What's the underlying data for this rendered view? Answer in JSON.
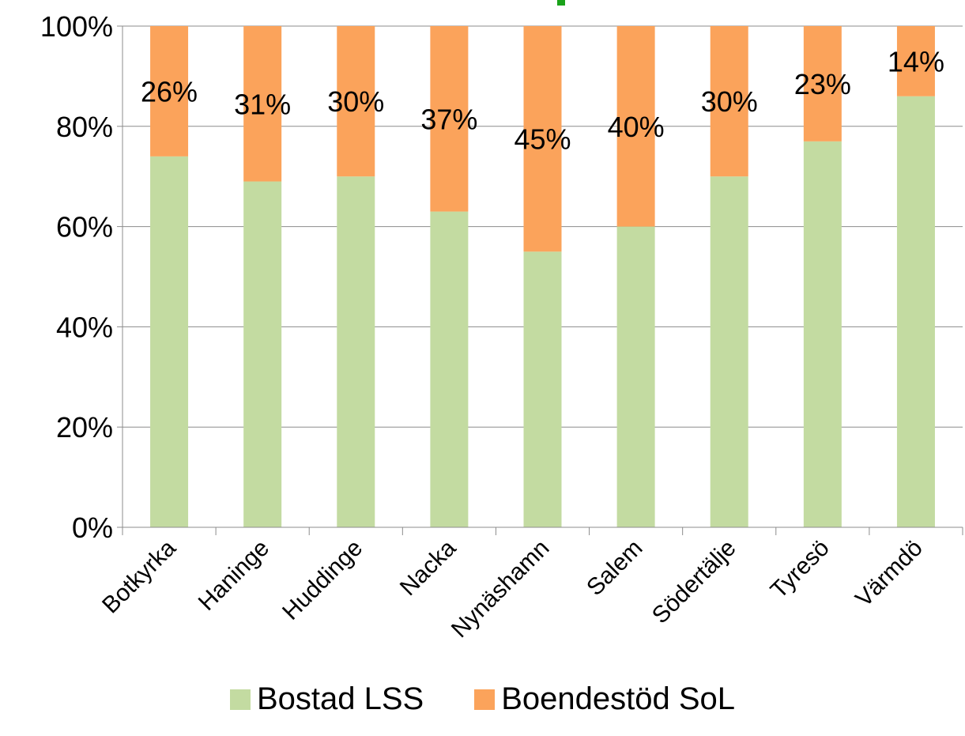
{
  "chart_data": {
    "type": "bar",
    "stacked": true,
    "percent_stacked": true,
    "categories": [
      "Botkyrka",
      "Haninge",
      "Huddinge",
      "Nacka",
      "Nynäshamn",
      "Salem",
      "Södertälje",
      "Tyresö",
      "Värmdö"
    ],
    "series": [
      {
        "name": "Bostad LSS",
        "color": "#c3dba1",
        "values": [
          74,
          69,
          70,
          63,
          55,
          60,
          70,
          77,
          86
        ]
      },
      {
        "name": "Boendestöd SoL",
        "color": "#fba35b",
        "values": [
          26,
          31,
          30,
          37,
          45,
          40,
          30,
          23,
          14
        ]
      }
    ],
    "data_labels": [
      "26%",
      "31%",
      "30%",
      "37%",
      "45%",
      "40%",
      "30%",
      "23%",
      "14%"
    ],
    "yticks": [
      "0%",
      "20%",
      "40%",
      "60%",
      "80%",
      "100%"
    ],
    "ylim": [
      0,
      100
    ],
    "grid": true,
    "legend_position": "bottom"
  }
}
